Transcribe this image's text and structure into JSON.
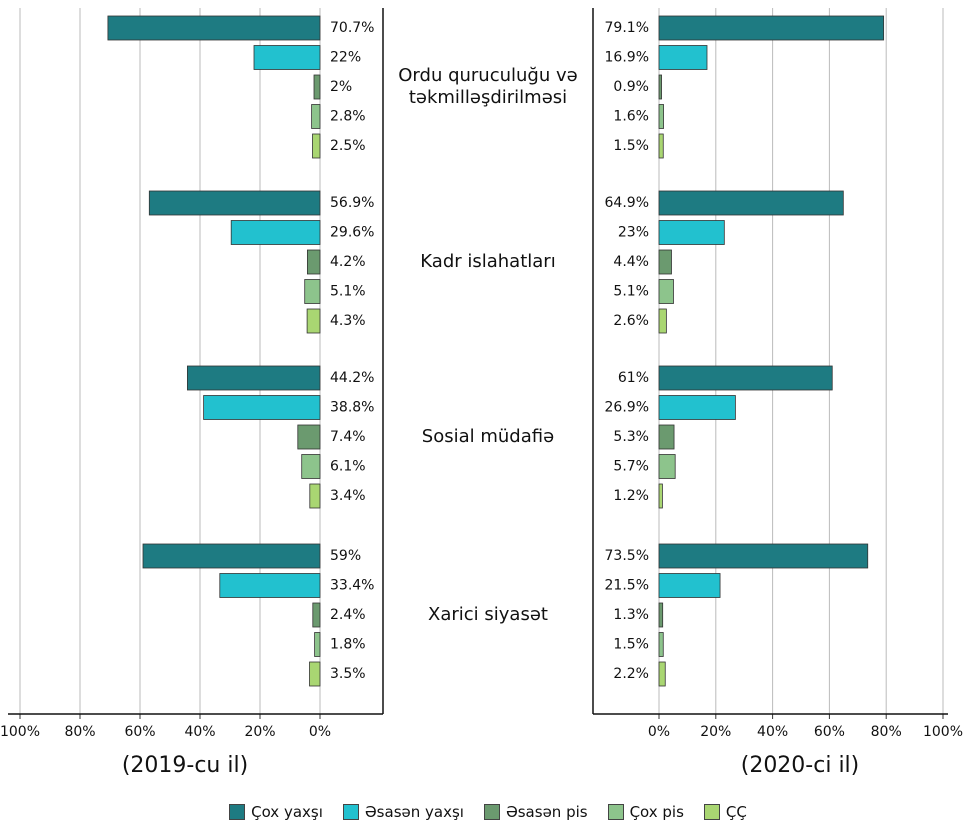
{
  "chart_data": [
    {
      "type": "bar",
      "orientation": "horizontal",
      "subtitle": "(2019-cu il)",
      "categories": [
        "Ordu quruculuğu və təkmilləşdirilməsi",
        "Kadr islahatları",
        "Sosial müdafiə",
        "Xarici siyasət"
      ],
      "series": [
        {
          "name": "Çox yaxşı",
          "color": "#1e7b82",
          "values": [
            70.7,
            56.9,
            44.2,
            59
          ],
          "value_labels": [
            "70.7%",
            "56.9%",
            "44.2%",
            "59%"
          ]
        },
        {
          "name": "Əsasən yaxşı",
          "color": "#22c1cf",
          "values": [
            22,
            29.6,
            38.8,
            33.4
          ],
          "value_labels": [
            "22%",
            "29.6%",
            "38.8%",
            "33.4%"
          ]
        },
        {
          "name": "Əsasən pis",
          "color": "#6b9a6f",
          "values": [
            2,
            4.2,
            7.4,
            2.4
          ],
          "value_labels": [
            "2%",
            "4.2%",
            "7.4%",
            "2.4%"
          ]
        },
        {
          "name": "Çox pis",
          "color": "#8dc48c",
          "values": [
            2.8,
            5.1,
            6.1,
            1.8
          ],
          "value_labels": [
            "2.8%",
            "5.1%",
            "6.1%",
            "1.8%"
          ]
        },
        {
          "name": "ÇÇ",
          "color": "#a9d672",
          "values": [
            2.5,
            4.3,
            3.4,
            3.5
          ],
          "value_labels": [
            "2.5%",
            "4.3%",
            "3.4%",
            "3.5%"
          ]
        }
      ],
      "xlim": [
        100,
        0
      ],
      "xticks": [
        {
          "value": 100,
          "label": "100%"
        },
        {
          "value": 80,
          "label": "80%"
        },
        {
          "value": 60,
          "label": "60%"
        },
        {
          "value": 40,
          "label": "40%"
        },
        {
          "value": 20,
          "label": "20%"
        },
        {
          "value": 0,
          "label": "0%"
        }
      ],
      "grid": true
    },
    {
      "type": "bar",
      "orientation": "horizontal",
      "subtitle": "(2020-ci il)",
      "series": [
        {
          "color": "#1e7b82",
          "values": [
            79.1,
            64.9,
            61,
            73.5
          ],
          "value_labels": [
            "79.1%",
            "64.9%",
            "61%",
            "73.5%"
          ]
        },
        {
          "color": "#22c1cf",
          "values": [
            16.9,
            23,
            26.9,
            21.5
          ],
          "value_labels": [
            "16.9%",
            "23%",
            "26.9%",
            "21.5%"
          ]
        },
        {
          "color": "#6b9a6f",
          "values": [
            0.9,
            4.4,
            5.3,
            1.3
          ],
          "value_labels": [
            "0.9%",
            "4.4%",
            "5.3%",
            "1.3%"
          ]
        },
        {
          "color": "#8dc48c",
          "values": [
            1.6,
            5.1,
            5.7,
            1.5
          ],
          "value_labels": [
            "1.6%",
            "5.1%",
            "5.7%",
            "1.5%"
          ]
        },
        {
          "color": "#a9d672",
          "values": [
            1.5,
            2.6,
            1.2,
            2.2
          ],
          "value_labels": [
            "1.5%",
            "2.6%",
            "1.2%",
            "2.2%"
          ]
        }
      ],
      "xlim": [
        0,
        100
      ],
      "xticks": [
        {
          "value": 0,
          "label": "0%"
        },
        {
          "value": 20,
          "label": "20%"
        },
        {
          "value": 40,
          "label": "40%"
        },
        {
          "value": 60,
          "label": "60%"
        },
        {
          "value": 80,
          "label": "80%"
        },
        {
          "value": 100,
          "label": "100%"
        }
      ],
      "grid": true
    }
  ]
}
